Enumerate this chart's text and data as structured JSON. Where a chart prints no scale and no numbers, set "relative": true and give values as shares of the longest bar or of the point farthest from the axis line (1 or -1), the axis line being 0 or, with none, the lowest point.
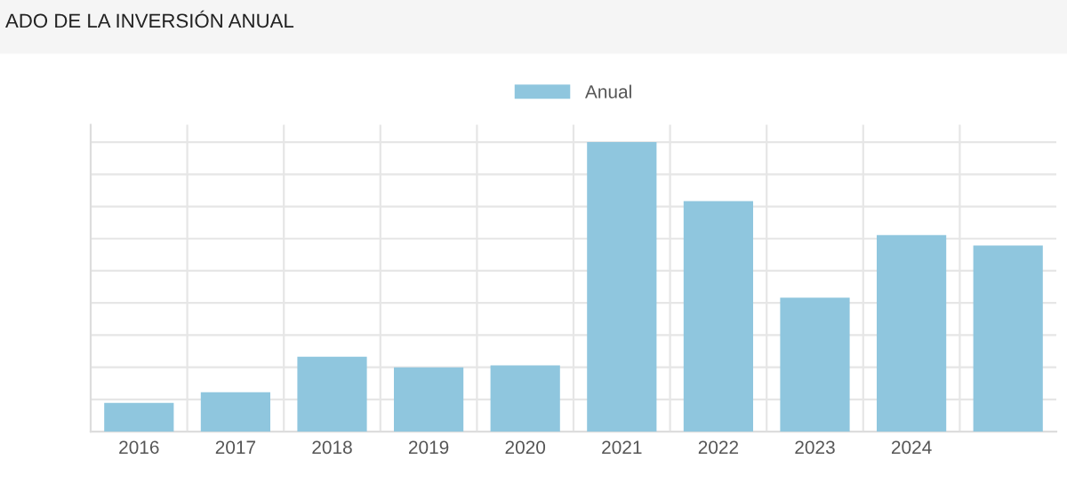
{
  "chart_data": {
    "type": "bar",
    "title": "ADO DE LA INVERSIÓN ANUAL",
    "categories": [
      "2016",
      "2017",
      "2018",
      "2019",
      "2020",
      "2021",
      "2022",
      "2023",
      "2024",
      null
    ],
    "series": [
      {
        "name": "Anual",
        "color": "#8fc6de",
        "values": [
          0.099,
          0.136,
          0.259,
          0.222,
          0.229,
          1,
          0.796,
          0.463,
          0.679,
          0.643
        ]
      }
    ],
    "relative": true,
    "grid": true,
    "legend": "top"
  }
}
